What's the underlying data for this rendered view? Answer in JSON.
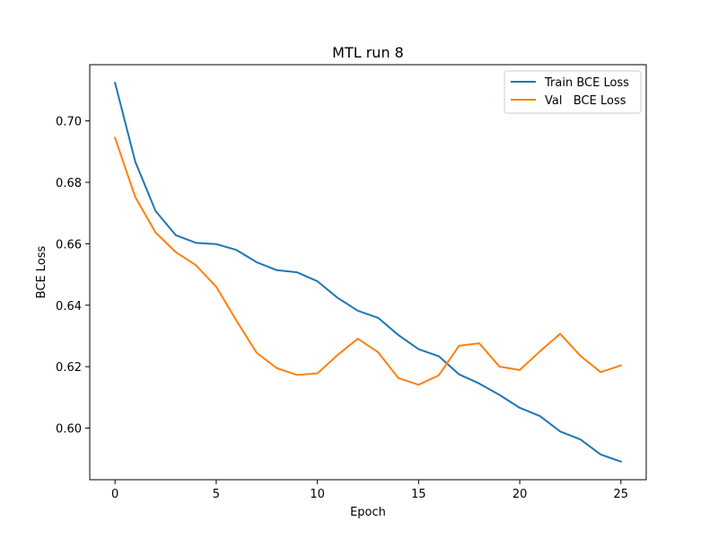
{
  "chart_data": {
    "type": "line",
    "title": "MTL run 8",
    "xlabel": "Epoch",
    "ylabel": "BCE Loss",
    "xlim": [
      -1.25,
      26.25
    ],
    "ylim": [
      0.5832,
      0.7183
    ],
    "xticks": [
      0,
      5,
      10,
      15,
      20,
      25
    ],
    "yticks": [
      0.6,
      0.62,
      0.64,
      0.66,
      0.68,
      0.7
    ],
    "xtick_labels": [
      "0",
      "5",
      "10",
      "15",
      "20",
      "25"
    ],
    "ytick_labels": [
      "0.60",
      "0.62",
      "0.64",
      "0.66",
      "0.68",
      "0.70"
    ],
    "grid": false,
    "legend_position": "top-right",
    "x": [
      0,
      1,
      2,
      3,
      4,
      5,
      6,
      7,
      8,
      9,
      10,
      11,
      12,
      13,
      14,
      15,
      16,
      17,
      18,
      19,
      20,
      21,
      22,
      23,
      24,
      25
    ],
    "series": [
      {
        "name": "Train BCE Loss",
        "color": "#1f77b4",
        "values": [
          0.7124,
          0.6867,
          0.6707,
          0.6628,
          0.6603,
          0.6599,
          0.658,
          0.654,
          0.6514,
          0.6507,
          0.6478,
          0.6424,
          0.6382,
          0.6359,
          0.6303,
          0.6257,
          0.6234,
          0.6175,
          0.6145,
          0.6108,
          0.6066,
          0.6039,
          0.5989,
          0.5963,
          0.5914,
          0.5891
        ]
      },
      {
        "name": "Val   BCE Loss",
        "color": "#ff7f0e",
        "values": [
          0.6945,
          0.6752,
          0.6637,
          0.6573,
          0.653,
          0.646,
          0.635,
          0.6245,
          0.6195,
          0.6173,
          0.6178,
          0.6238,
          0.6291,
          0.6247,
          0.6163,
          0.6141,
          0.6172,
          0.6268,
          0.6276,
          0.62,
          0.6189,
          0.625,
          0.6307,
          0.6235,
          0.6182,
          0.6204
        ]
      }
    ]
  }
}
